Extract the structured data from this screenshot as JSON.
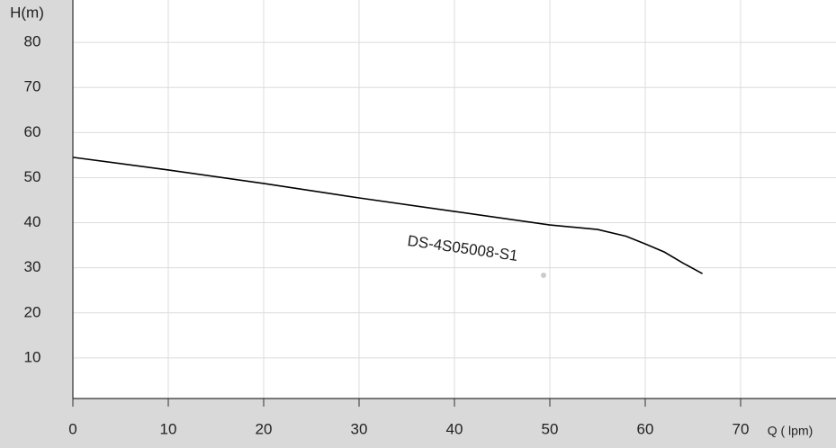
{
  "chart_data": {
    "type": "line",
    "y_label": "H(m)",
    "x_label": "Q ( lpm)",
    "x": [
      0,
      10,
      20,
      30,
      40,
      50,
      55,
      58,
      60,
      62,
      64,
      66
    ],
    "series": [
      {
        "name": "DS-4S05008-S1",
        "color": "#000000",
        "values": [
          54.5,
          51.7,
          48.7,
          45.5,
          42.5,
          39.5,
          38.5,
          37,
          35.3,
          33.5,
          31,
          28.7
        ]
      }
    ],
    "xlim": [
      0,
      80
    ],
    "xticks": [
      0,
      10,
      20,
      30,
      40,
      50,
      60,
      70
    ],
    "ylim": [
      0,
      89.4
    ],
    "yticks": [
      10,
      20,
      30,
      40,
      50,
      60,
      70,
      80
    ],
    "grid": true
  }
}
